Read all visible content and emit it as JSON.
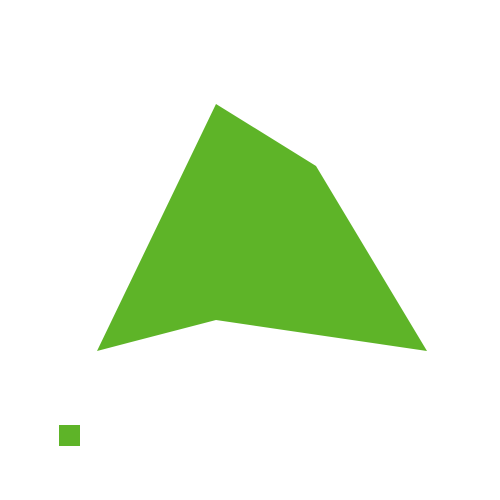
{
  "colors": {
    "shape_fill": "#5eb428",
    "marker_fill": "#5eb428",
    "background": "#ffffff"
  }
}
